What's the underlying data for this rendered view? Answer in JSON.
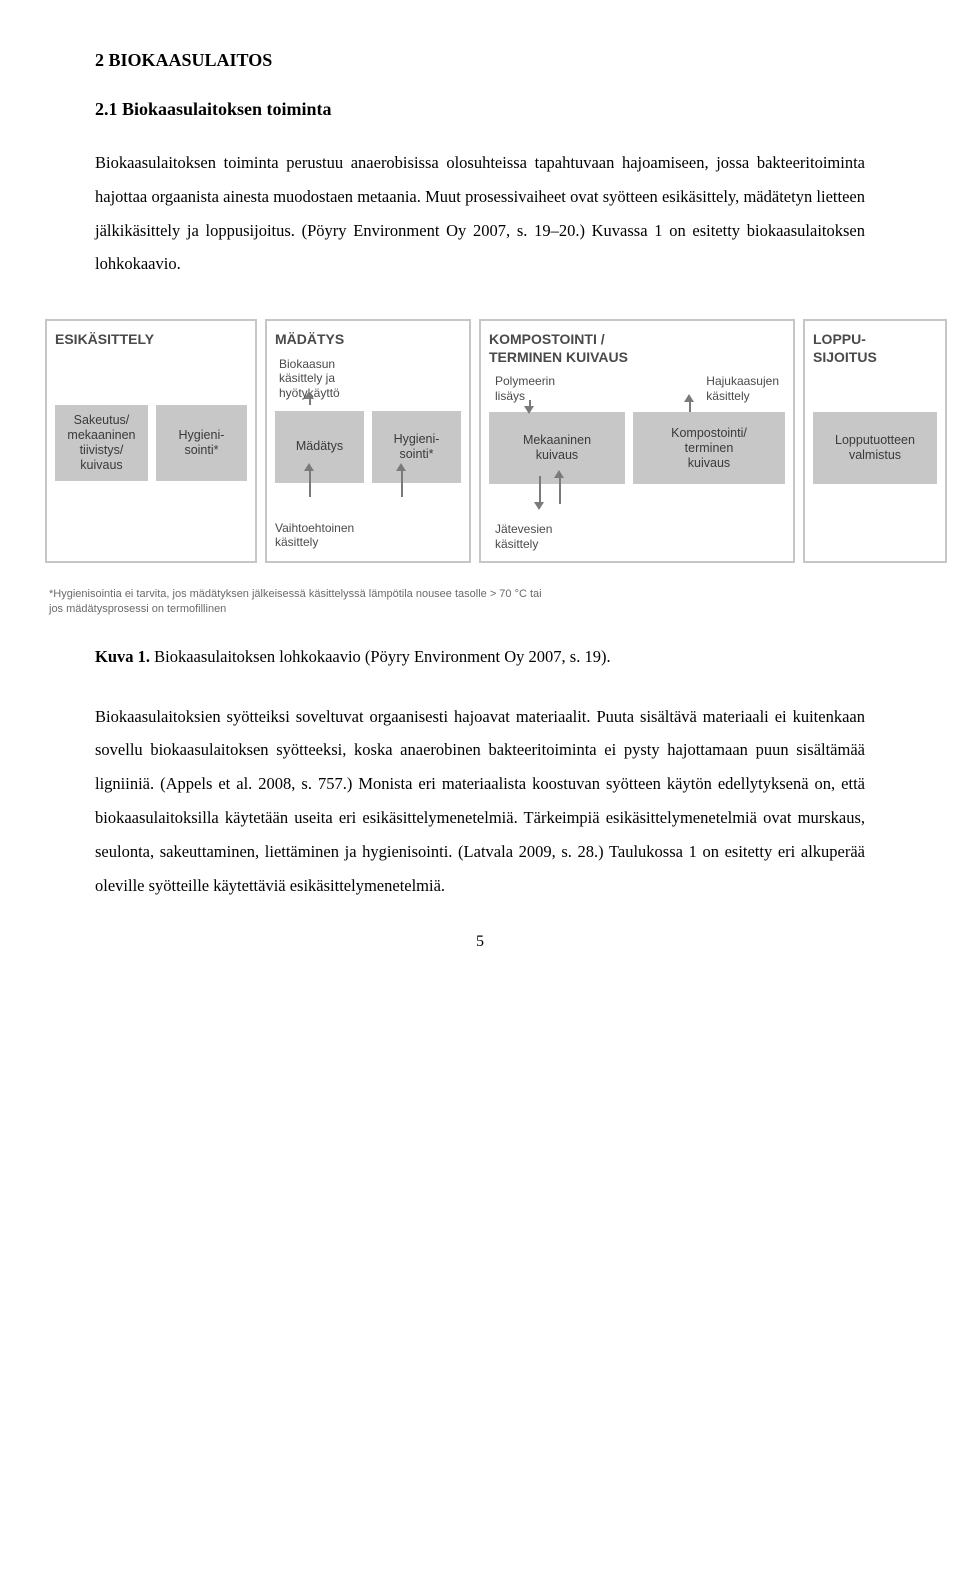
{
  "headings": {
    "h1": "2   BIOKAASULAITOS",
    "h2": "2.1   Biokaasulaitoksen toiminta"
  },
  "paragraphs": {
    "p1": "Biokaasulaitoksen toiminta perustuu anaerobisissa olosuhteissa tapahtuvaan hajoamiseen, jossa bakteeritoiminta hajottaa orgaanista ainesta muodostaen metaania. Muut prosessivaiheet ovat syötteen esikäsittely, mädätetyn lietteen jälkikäsittely ja loppusijoitus. (Pöyry Environment Oy 2007, s. 19–20.) Kuvassa 1 on esitetty biokaasulaitoksen lohkokaavio.",
    "p2": "Biokaasulaitoksien syötteiksi soveltuvat orgaanisesti hajoavat materiaalit. Puuta sisältävä materiaali ei kuitenkaan sovellu biokaasulaitoksen syötteeksi, koska anaerobinen bakteeritoiminta ei pysty hajottamaan puun sisältämää ligniiniä. (Appels et al. 2008, s. 757.) Monista eri materiaalista koostuvan syötteen käytön edellytyksenä on, että biokaasulaitoksilla käytetään useita eri esikäsittelymenetelmiä. Tärkeimpiä esikäsittelymenetelmiä ovat murskaus, seulonta, sakeuttaminen, liettäminen ja hygienisointi. (Latvala 2009, s. 28.) Taulukossa 1 on esitetty eri alkuperää oleville syötteille käytettäviä esikäsittelymenetelmiä."
  },
  "caption": {
    "label": "Kuva 1.",
    "text": " Biokaasulaitoksen lohkokaavio (Pöyry Environment Oy 2007, s. 19)."
  },
  "diagram": {
    "sections": {
      "esik": {
        "title": "ESIKÄSITTELY",
        "boxes": [
          "Sakeutus/\nmekaaninen\ntiivistys/\nkuivaus",
          "Hygieni-\nsointi*"
        ]
      },
      "mada": {
        "title": "MÄDÄTYS",
        "top_label": "Biokaasun\nkäsittely ja\nhyötykäyttö",
        "boxes": [
          "Mädätys",
          "Hygieni-\nsointi*"
        ],
        "bottom_label": "Vaihtoehtoinen\nkäsittely"
      },
      "komp": {
        "title": "KOMPOSTOINTI /\nTERMINEN KUIVAUS",
        "top_labels": [
          "Polymeerin\nlisäys",
          "Hajukaasujen\nkäsittely"
        ],
        "boxes": [
          "Mekaaninen\nkuivaus",
          "Kompostointi/\nterminen\nkuivaus"
        ],
        "bottom_label": "Jätevesien\nkäsittely"
      },
      "lopp": {
        "title": "LOPPU-\nSIJOITUS",
        "boxes": [
          "Lopputuotteen\nvalmistus"
        ]
      }
    },
    "footnote": "*Hygienisointia ei tarvita, jos mädätyksen jälkeisessä käsittelyssä lämpötila nousee tasolle > 70 °C tai\njos mädätysprosessi on termofillinen"
  },
  "page_number": "5",
  "colors": {
    "box_bg": "#c7c7c7",
    "border": "#c6c6c6",
    "text_gray": "#4a4a4a"
  }
}
